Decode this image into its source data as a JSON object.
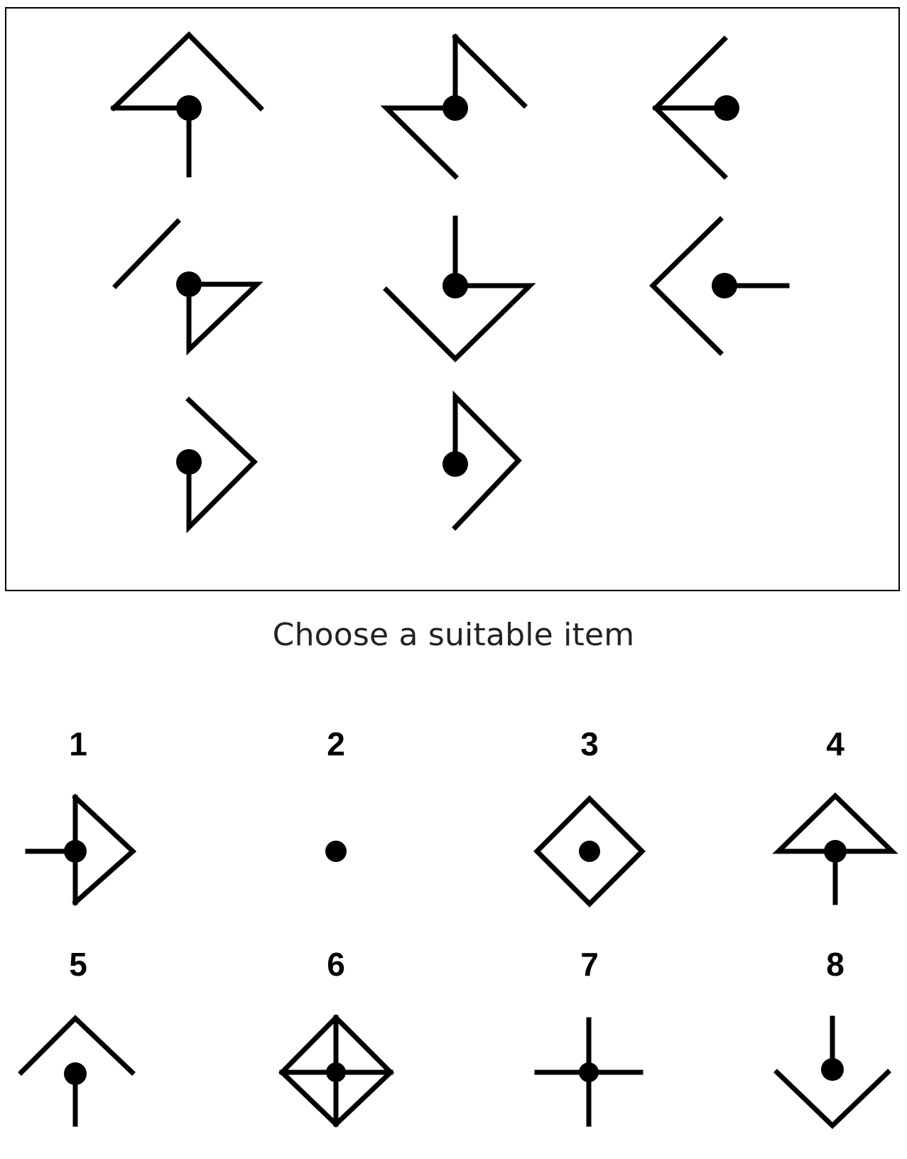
{
  "puzzle": {
    "prompt": "Choose a suitable item",
    "options": [
      {
        "label": "1"
      },
      {
        "label": "2"
      },
      {
        "label": "3"
      },
      {
        "label": "4"
      },
      {
        "label": "5"
      },
      {
        "label": "6"
      },
      {
        "label": "7"
      },
      {
        "label": "8"
      }
    ]
  }
}
